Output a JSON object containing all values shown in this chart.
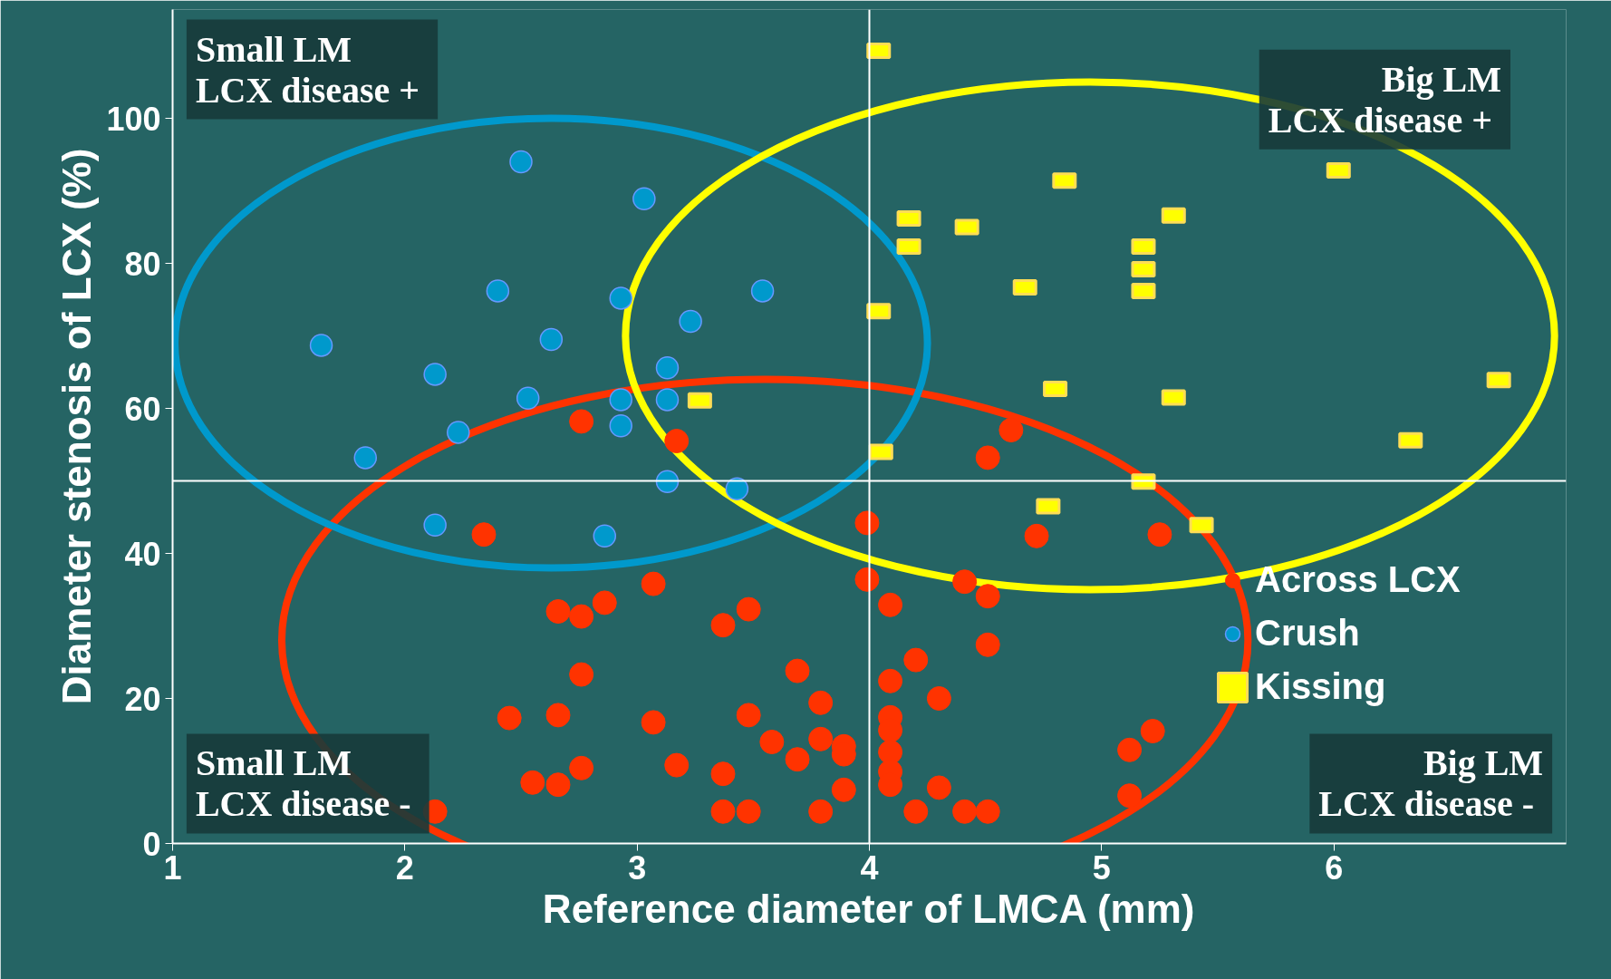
{
  "chart_data": {
    "type": "scatter",
    "xlabel": "Reference diameter of LMCA (mm)",
    "ylabel": "Diameter stenosis of LCX (%)",
    "xlim": [
      1,
      7
    ],
    "xticks": [
      1,
      2,
      3,
      4,
      5,
      6
    ],
    "ylim": [
      0,
      115
    ],
    "yticks": [
      0,
      20,
      40,
      60,
      80,
      100
    ],
    "grid": false,
    "legend": "right",
    "ref_lines": [
      {
        "axis": "x",
        "value": 4,
        "color": "#ffffff"
      },
      {
        "axis": "y",
        "value": 50,
        "color": "#ffffff"
      }
    ],
    "annotations": [
      "Small LM\nLCX  disease +",
      "Big LM\nLCX  disease +",
      "Small LM\nLCX  disease -",
      "Big LM\nLCX  disease -"
    ],
    "series": [
      {
        "name": "Across LCX",
        "color": "#ff3300",
        "marker": "circle",
        "x": [
          2.13,
          2.34,
          2.45,
          2.55,
          2.66,
          2.66,
          2.66,
          2.76,
          2.76,
          2.76,
          2.76,
          2.86,
          3.07,
          3.07,
          3.17,
          3.17,
          3.37,
          3.37,
          3.37,
          3.48,
          3.48,
          3.48,
          3.58,
          3.69,
          3.69,
          3.79,
          3.79,
          3.79,
          3.89,
          3.89,
          3.89,
          3.99,
          3.99,
          4.09,
          4.09,
          4.09,
          4.09,
          4.09,
          4.09,
          4.09,
          4.2,
          4.2,
          4.3,
          4.3,
          4.41,
          4.41,
          4.51,
          4.51,
          4.51,
          4.51,
          4.61,
          4.72,
          5.12,
          5.12,
          5.22,
          5.25
        ],
        "values": [
          4.4,
          42.6,
          17.3,
          8.4,
          32.0,
          17.7,
          8.1,
          58.2,
          31.3,
          23.3,
          10.4,
          33.2,
          35.8,
          16.7,
          55.5,
          10.8,
          30.1,
          9.6,
          4.4,
          32.3,
          17.7,
          4.4,
          14.0,
          23.8,
          11.6,
          19.4,
          14.4,
          4.4,
          13.4,
          12.3,
          7.4,
          44.2,
          36.4,
          32.9,
          22.4,
          17.4,
          15.6,
          12.6,
          9.9,
          8.1,
          25.3,
          4.4,
          20.0,
          7.7,
          36.1,
          4.4,
          34.1,
          27.4,
          4.4,
          53.2,
          57.0,
          42.4,
          12.9,
          6.6,
          15.5,
          42.6
        ]
      },
      {
        "name": "Crush",
        "color": "#0099cc",
        "marker": "circle",
        "x": [
          1.64,
          1.83,
          2.13,
          2.13,
          2.23,
          2.4,
          2.5,
          2.53,
          2.63,
          2.86,
          2.93,
          2.93,
          2.93,
          3.03,
          3.13,
          3.13,
          3.13,
          3.23,
          3.43,
          3.54
        ],
        "values": [
          68.7,
          53.2,
          64.7,
          43.9,
          56.7,
          76.2,
          94.0,
          61.4,
          69.5,
          42.4,
          57.6,
          61.2,
          75.2,
          88.9,
          65.6,
          61.2,
          49.9,
          72.0,
          48.9,
          76.2
        ]
      },
      {
        "name": "Kissing",
        "color": "#ffff00",
        "marker": "square",
        "x": [
          4.04,
          3.27,
          4.04,
          4.17,
          4.17,
          4.42,
          4.67,
          4.8,
          4.84,
          4.05,
          4.77,
          5.18,
          5.18,
          5.18,
          5.31,
          5.31,
          5.18,
          5.43,
          6.02,
          6.33,
          6.71
        ],
        "values": [
          109.3,
          61.1,
          73.4,
          86.2,
          82.3,
          85.0,
          76.7,
          62.7,
          91.4,
          54.0,
          46.5,
          82.3,
          79.2,
          76.2,
          86.6,
          61.5,
          49.9,
          43.9,
          92.8,
          55.6,
          63.9
        ]
      }
    ]
  }
}
